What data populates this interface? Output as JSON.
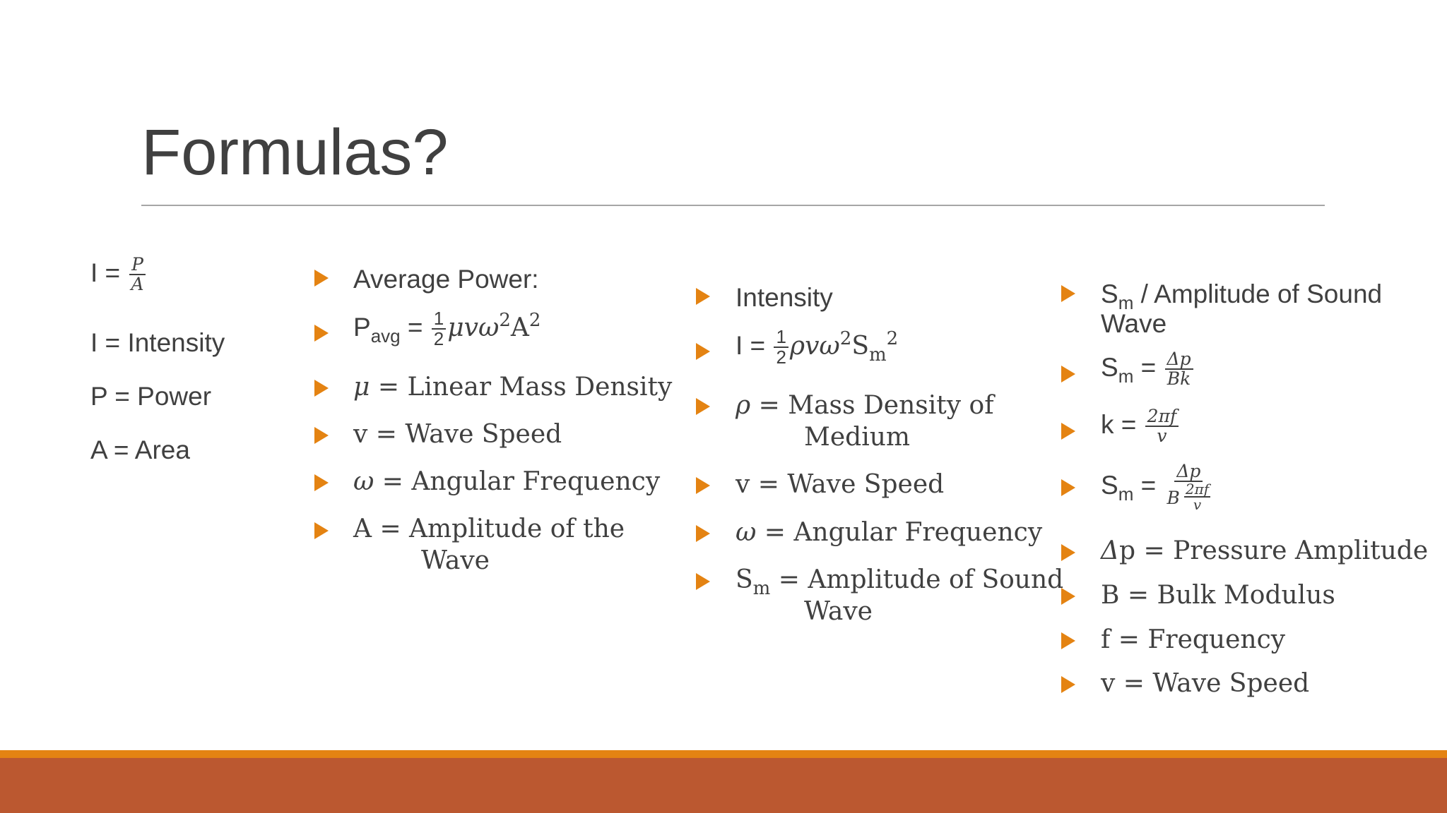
{
  "slide": {
    "title": "Formulas?"
  },
  "col1": {
    "formula_lhs": "I =",
    "formula_num": "P",
    "formula_den": "A",
    "definitions": [
      "I = Intensity",
      "P = Power",
      "A = Area"
    ]
  },
  "col2": {
    "heading": "Average Power:",
    "formula": {
      "lhs": "P",
      "lhs_sub": "avg",
      "eq": " =",
      "frac_num": "1",
      "frac_den": "2",
      "body": "μvω",
      "body_sup": "2",
      "tail": "A",
      "tail_sup": "2"
    },
    "mu_symbol": "μ",
    "mu_def": " = Linear Mass Density",
    "v_def": "v = Wave Speed",
    "omega_symbol": "ω",
    "omega_def": " = Angular Frequency",
    "amp_line1": "A = Amplitude of the",
    "amp_line2": "Wave"
  },
  "col3": {
    "heading": "Intensity",
    "formula": {
      "lhs": "I =",
      "frac_num": "1",
      "frac_den": "2",
      "body": "ρvω",
      "body_sup": "2",
      "tail": "S",
      "tail_sub": "m",
      "tail_sup": "2"
    },
    "rho_symbol": "ρ",
    "rho_line1": " = Mass Density of",
    "rho_line2": "Medium",
    "v_def": "v = Wave Speed",
    "omega_symbol": "ω",
    "omega_def": " = Angular Frequency",
    "sm_symbol": "S",
    "sm_sub": "m",
    "sm_line1": " = Amplitude of Sound",
    "sm_line2": "Wave"
  },
  "col4": {
    "heading_symbol": "S",
    "heading_sub": "m",
    "heading_line1": " / Amplitude of Sound",
    "heading_line2": "Wave",
    "f1": {
      "lhs": "S",
      "lhs_sub": "m",
      "eq": " =",
      "num": "Δp",
      "den": "Bk"
    },
    "f2": {
      "lhs": "k =",
      "num": "2πf",
      "den": "v"
    },
    "f3": {
      "lhs": "S",
      "lhs_sub": "m",
      "eq": " =",
      "num": "Δp",
      "den_b": "B",
      "inner_num": "2πf",
      "inner_den": "v"
    },
    "dp_symbol": "Δ",
    "dp_def": "p = Pressure Amplitude",
    "b_def": "B = Bulk Modulus",
    "f_def": "f = Frequency",
    "v_def": "v = Wave Speed"
  },
  "colors": {
    "bullet": "#e48312",
    "footer_thin": "#e48312",
    "footer_band": "#bb5830",
    "text": "#404040",
    "rule": "#a6a6a6"
  }
}
